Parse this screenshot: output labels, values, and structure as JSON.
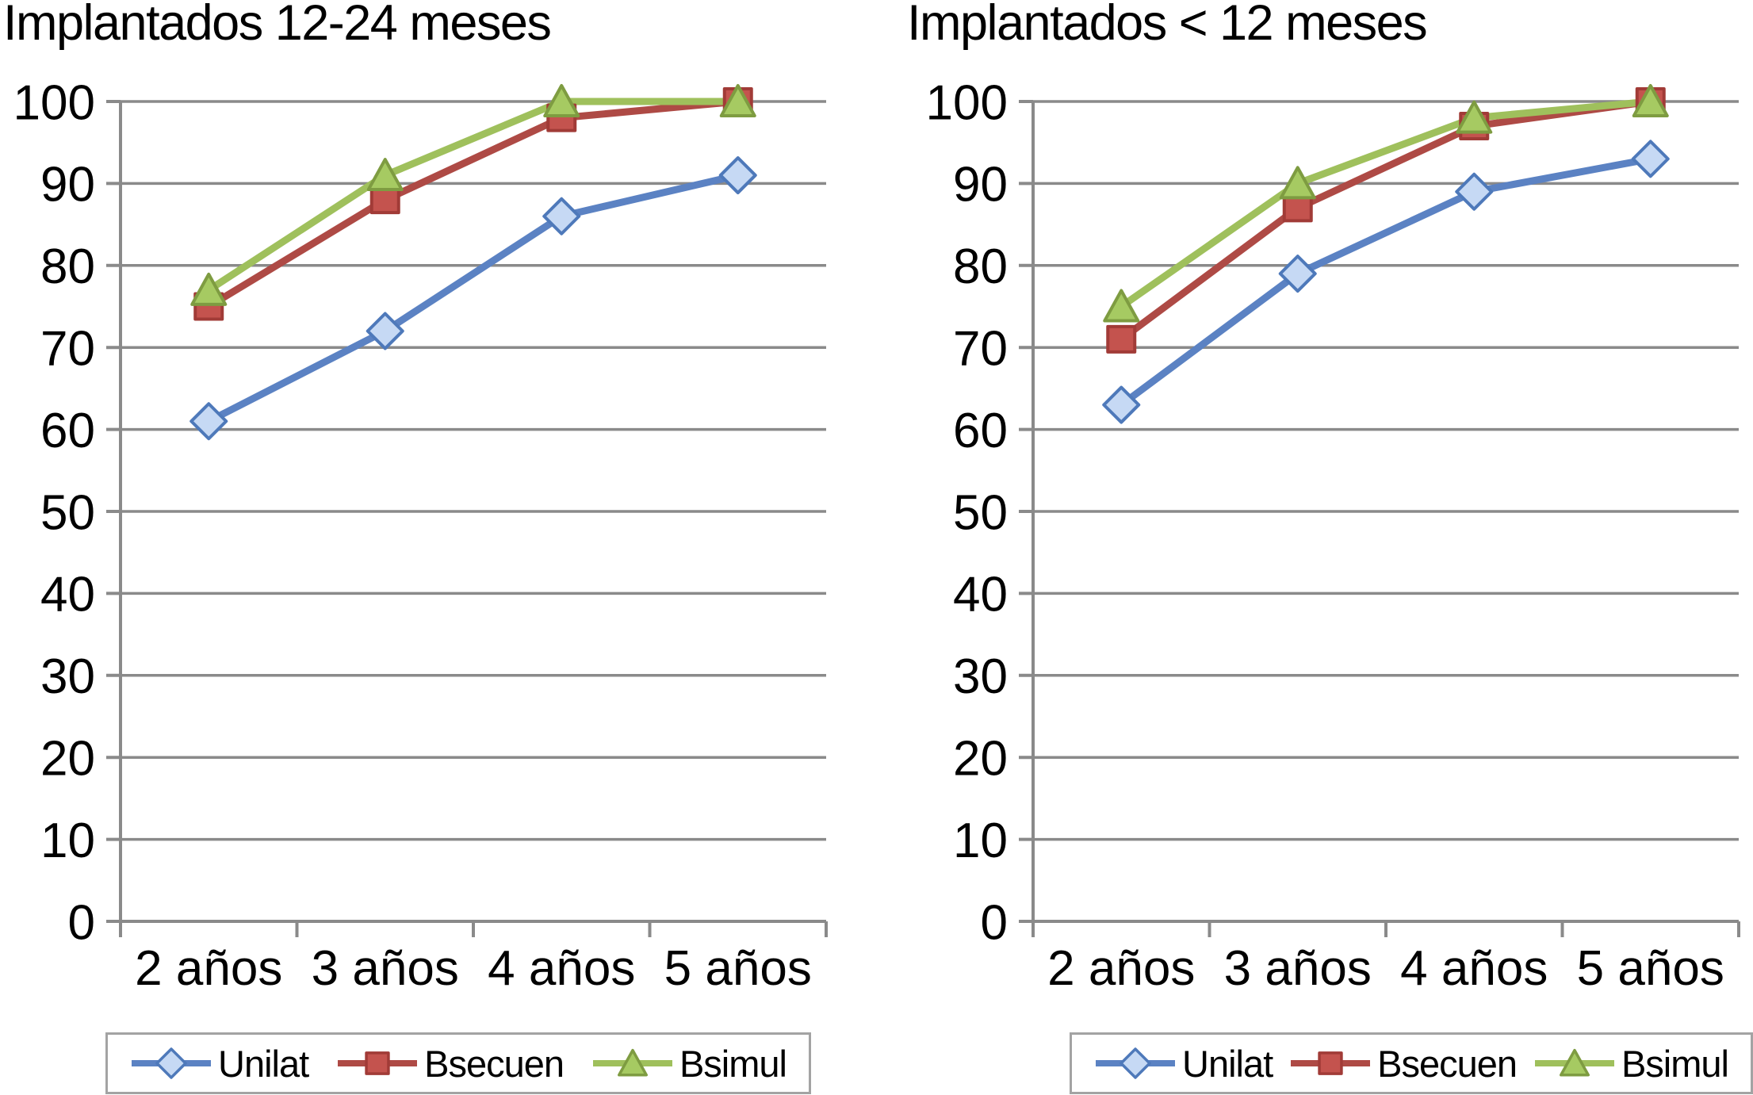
{
  "figure": {
    "background": "#FFFFFF",
    "text_color": "#000000",
    "axis_color": "#8A8A8A",
    "legend_border_color": "#A3A3A3"
  },
  "chart_data": [
    {
      "type": "line",
      "title": "Implantados 12-24 meses",
      "categories": [
        "2 años",
        "3 años",
        "4 años",
        "5 años"
      ],
      "ylim": [
        0,
        100
      ],
      "yticks": [
        0,
        10,
        20,
        30,
        40,
        50,
        60,
        70,
        80,
        90,
        100
      ],
      "grid": true,
      "legend_position": "bottom",
      "series": [
        {
          "name": "Unilat",
          "marker": "diamond",
          "values": [
            61,
            72,
            86,
            91
          ],
          "line_color": "#5B82C3",
          "marker_fill": "#C6D9F4",
          "marker_border": "#4E79BA"
        },
        {
          "name": "Bsecuen",
          "marker": "square",
          "values": [
            75,
            88,
            98,
            100
          ],
          "line_color": "#AE4A45",
          "marker_fill": "#C4534E",
          "marker_border": "#A13B37"
        },
        {
          "name": "Bsimul",
          "marker": "triangle",
          "values": [
            77,
            91,
            100,
            100
          ],
          "line_color": "#9FC05C",
          "marker_fill": "#A6CA62",
          "marker_border": "#7E9C41"
        }
      ]
    },
    {
      "type": "line",
      "title": "Implantados < 12 meses",
      "categories": [
        "2 años",
        "3 años",
        "4 años",
        "5 años"
      ],
      "ylim": [
        0,
        100
      ],
      "yticks": [
        0,
        10,
        20,
        30,
        40,
        50,
        60,
        70,
        80,
        90,
        100
      ],
      "grid": true,
      "legend_position": "bottom",
      "series": [
        {
          "name": "Unilat",
          "marker": "diamond",
          "values": [
            63,
            79,
            89,
            93
          ],
          "line_color": "#5B82C3",
          "marker_fill": "#C6D9F4",
          "marker_border": "#4E79BA"
        },
        {
          "name": "Bsecuen",
          "marker": "square",
          "values": [
            71,
            87,
            97,
            100
          ],
          "line_color": "#AE4A45",
          "marker_fill": "#C4534E",
          "marker_border": "#A13B37"
        },
        {
          "name": "Bsimul",
          "marker": "triangle",
          "values": [
            75,
            90,
            98,
            100
          ],
          "line_color": "#9FC05C",
          "marker_fill": "#A6CA62",
          "marker_border": "#7E9C41"
        }
      ]
    }
  ]
}
